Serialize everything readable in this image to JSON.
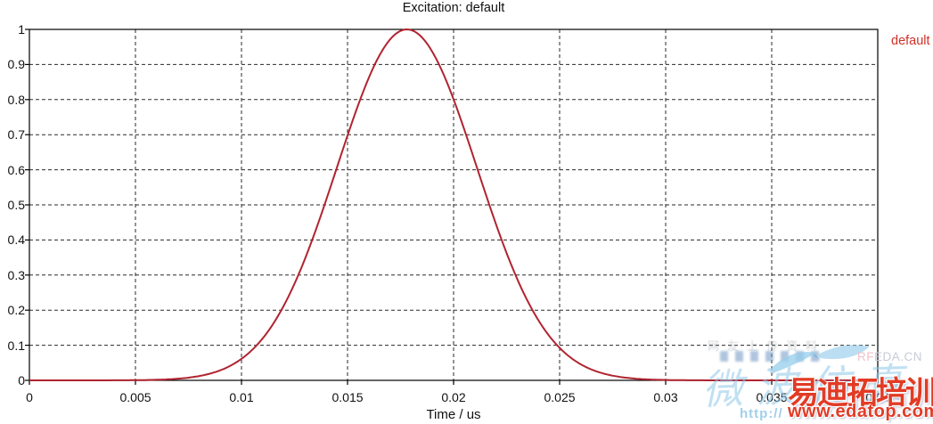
{
  "title": "Excitation: default",
  "legend": {
    "label": "default",
    "color": "#d03028"
  },
  "axes": {
    "x": {
      "label": "Time / us",
      "tick_labels": [
        "0",
        "0.005",
        "0.01",
        "0.015",
        "0.02",
        "0.025",
        "0.03",
        "0.035",
        "0.04"
      ],
      "min": 0,
      "max": 0.04
    },
    "y": {
      "tick_labels": [
        "1",
        "0.9",
        "0.8",
        "0.7",
        "0.6",
        "0.5",
        "0.4",
        "0.3",
        "0.2",
        "0.1",
        "0"
      ],
      "min": 0,
      "max": 1
    }
  },
  "chart_data": {
    "type": "line",
    "title": "Excitation: default",
    "xlabel": "Time / us",
    "ylabel": "",
    "xlim": [
      0,
      0.04
    ],
    "ylim": [
      0,
      1
    ],
    "grid": "dashed-major",
    "legend_position": "top-right-outside",
    "series": [
      {
        "name": "default",
        "color": "#b02430",
        "model": {
          "shape": "gaussian",
          "center": 0.0178,
          "sigma": 0.0033,
          "amplitude": 1
        },
        "x": [
          0,
          0.001,
          0.002,
          0.003,
          0.004,
          0.005,
          0.006,
          0.007,
          0.008,
          0.009,
          0.01,
          0.011,
          0.012,
          0.013,
          0.014,
          0.015,
          0.016,
          0.017,
          0.018,
          0.019,
          0.02,
          0.021,
          0.022,
          0.023,
          0.024,
          0.025,
          0.026,
          0.027,
          0.028,
          0.029,
          0.03,
          0.031,
          0.032,
          0.033,
          0.034,
          0.035,
          0.036,
          0.037,
          0.038,
          0.039,
          0.04
        ],
        "y": [
          0,
          0,
          0,
          0,
          0.0002,
          0.0005,
          0.0017,
          0.0047,
          0.0121,
          0.0285,
          0.0613,
          0.1197,
          0.2133,
          0.347,
          0.515,
          0.698,
          0.862,
          0.971,
          0.998,
          0.936,
          0.801,
          0.625,
          0.445,
          0.289,
          0.171,
          0.0925,
          0.0456,
          0.0205,
          0.0084,
          0.0031,
          0.0011,
          0.0003,
          0.0001,
          0,
          0,
          0,
          0,
          0,
          0,
          0,
          0
        ]
      }
    ]
  },
  "watermarks": {
    "faint_text": "网友上传资料",
    "rfeda_rf": "RF",
    "rfeda_rest": "EDA.CN",
    "script_text": "微波仿真",
    "brand_cn": "易迪拓培训",
    "url_prefix": "http://",
    "url": "www.edatop.com"
  }
}
